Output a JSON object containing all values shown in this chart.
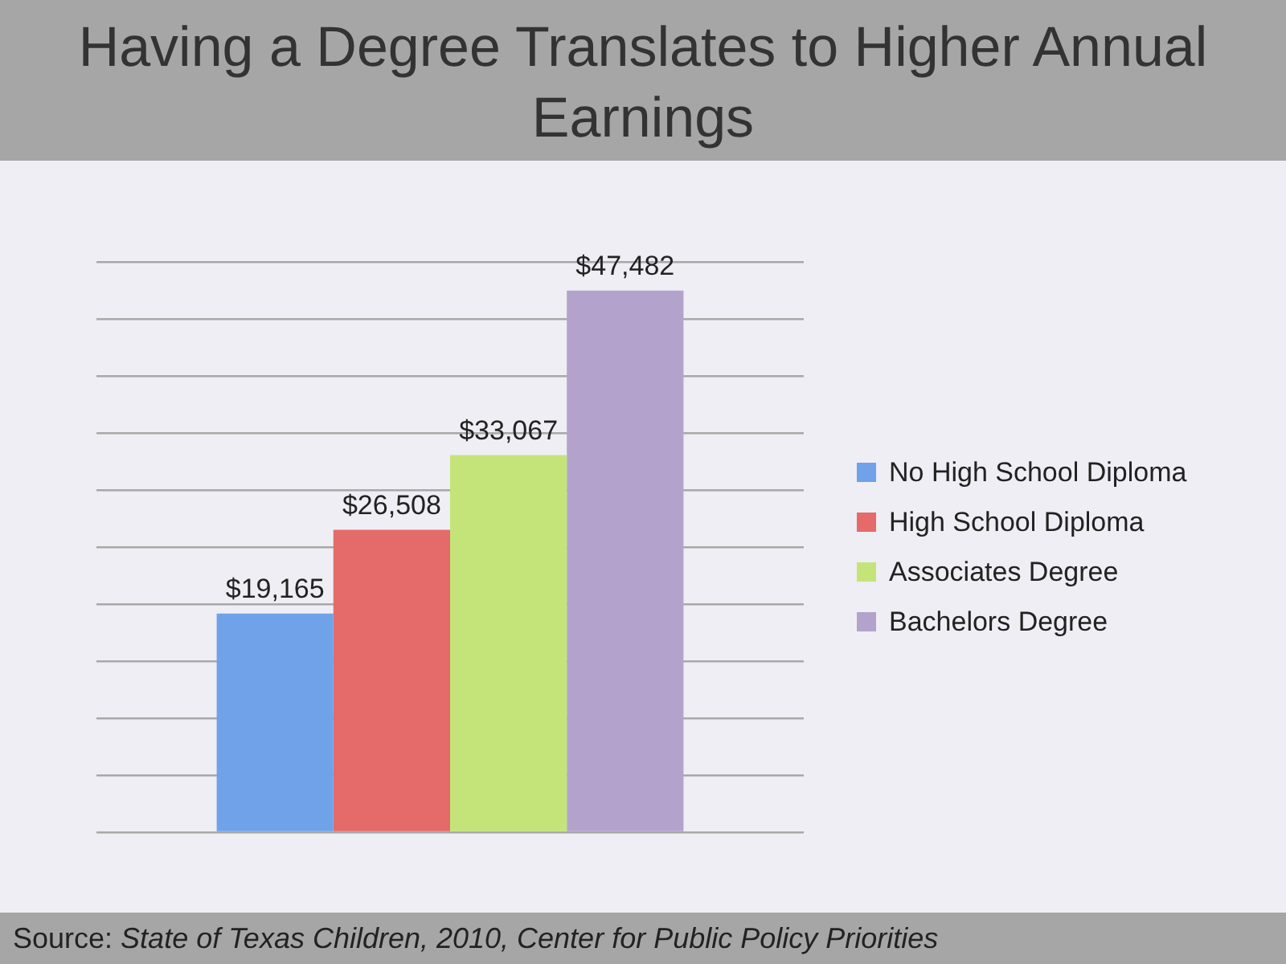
{
  "chart_data": {
    "type": "bar",
    "title": "Having a Degree Translates to Higher Annual Earnings",
    "categories": [
      null
    ],
    "series": [
      {
        "name": "No High School Diploma",
        "color": "#6fa2e8",
        "values": [
          19165
        ],
        "value_labels": [
          "$19,165"
        ]
      },
      {
        "name": "High School Diploma",
        "color": "#e56a6a",
        "values": [
          26508
        ],
        "value_labels": [
          "$26,508"
        ]
      },
      {
        "name": "Associates Degree",
        "color": "#c4e47a",
        "values": [
          33067
        ],
        "value_labels": [
          "$33,067"
        ]
      },
      {
        "name": "Bachelors Degree",
        "color": "#b3a3cc",
        "values": [
          47482
        ],
        "value_labels": [
          "$47,482"
        ]
      }
    ],
    "ylim": [
      0,
      50000
    ],
    "yticks": [
      {
        "value": 0,
        "label": null
      },
      {
        "value": 5000,
        "label": null
      },
      {
        "value": 10000,
        "label": null
      },
      {
        "value": 15000,
        "label": null
      },
      {
        "value": 20000,
        "label": null
      },
      {
        "value": 25000,
        "label": null
      },
      {
        "value": 30000,
        "label": null
      },
      {
        "value": 35000,
        "label": null
      },
      {
        "value": 40000,
        "label": null
      },
      {
        "value": 45000,
        "label": null
      },
      {
        "value": 50000,
        "label": null
      }
    ],
    "grid": "y",
    "tick_labels": false,
    "legend": "right",
    "annotations": [
      "Source: State of Texas Children, 2010, Center for Public Policy Priorities"
    ]
  }
}
